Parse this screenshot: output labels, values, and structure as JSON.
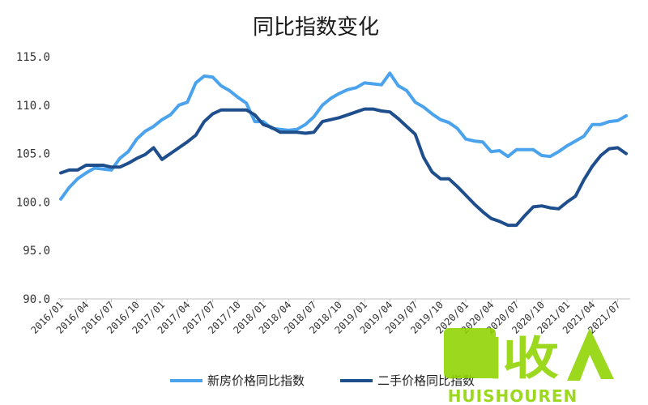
{
  "chart_data": {
    "type": "line",
    "title": "同比指数变化",
    "ylim": [
      90,
      115
    ],
    "yticks": [
      "115.0",
      "110.0",
      "105.0",
      "100.0",
      "95.0",
      "90.0"
    ],
    "x": [
      "2016/01",
      "2016/02",
      "2016/03",
      "2016/04",
      "2016/05",
      "2016/06",
      "2016/07",
      "2016/08",
      "2016/09",
      "2016/10",
      "2016/11",
      "2016/12",
      "2017/01",
      "2017/02",
      "2017/03",
      "2017/04",
      "2017/05",
      "2017/06",
      "2017/07",
      "2017/08",
      "2017/09",
      "2017/10",
      "2017/11",
      "2017/12",
      "2018/01",
      "2018/02",
      "2018/03",
      "2018/04",
      "2018/05",
      "2018/06",
      "2018/07",
      "2018/08",
      "2018/09",
      "2018/10",
      "2018/11",
      "2018/12",
      "2019/01",
      "2019/02",
      "2019/03",
      "2019/04",
      "2019/05",
      "2019/06",
      "2019/07",
      "2019/08",
      "2019/09",
      "2019/10",
      "2019/11",
      "2019/12",
      "2020/01",
      "2020/02",
      "2020/03",
      "2020/04",
      "2020/05",
      "2020/06",
      "2020/07",
      "2020/08",
      "2020/09",
      "2020/10",
      "2020/11",
      "2020/12",
      "2021/01",
      "2021/02",
      "2021/03",
      "2021/04",
      "2021/05",
      "2021/06",
      "2021/07",
      "2021/08"
    ],
    "xtick_labels": [
      "2016/01",
      "2016/04",
      "2016/07",
      "2016/10",
      "2017/01",
      "2017/04",
      "2017/07",
      "2017/10",
      "2018/01",
      "2018/04",
      "2018/07",
      "2018/10",
      "2019/01",
      "2019/04",
      "2019/07",
      "2019/10",
      "2020/01",
      "2020/04",
      "2020/07",
      "2020/10",
      "2021/01",
      "2021/04",
      "2021/07"
    ],
    "grid": false,
    "legend_position": "bottom",
    "series": [
      {
        "name": "新房价格同比指数",
        "color": "#4aa3ec",
        "values": [
          100.3,
          101.5,
          102.4,
          103.0,
          103.5,
          103.4,
          103.3,
          104.5,
          105.2,
          106.5,
          107.3,
          107.8,
          108.5,
          109.0,
          110.0,
          110.3,
          112.3,
          113.0,
          112.9,
          112.0,
          111.5,
          110.8,
          110.2,
          108.3,
          108.3,
          107.6,
          107.5,
          107.4,
          107.5,
          108.0,
          108.8,
          110.0,
          110.7,
          111.2,
          111.6,
          111.8,
          112.3,
          112.2,
          112.1,
          113.3,
          112.0,
          111.5,
          110.3,
          109.8,
          109.1,
          108.5,
          108.2,
          107.6,
          106.5,
          106.3,
          106.2,
          105.2,
          105.3,
          104.7,
          105.4,
          105.4,
          105.4,
          104.8,
          104.7,
          105.2,
          105.8,
          106.3,
          106.8,
          108.0,
          108.0,
          108.3,
          108.4,
          108.9
        ]
      },
      {
        "name": "二手价格同比指数",
        "color": "#1f4e8c",
        "values": [
          103.0,
          103.3,
          103.3,
          103.8,
          103.8,
          103.8,
          103.6,
          103.6,
          104.0,
          104.5,
          104.9,
          105.6,
          104.4,
          105.0,
          105.6,
          106.2,
          106.9,
          108.3,
          109.1,
          109.5,
          109.5,
          109.5,
          109.5,
          109.0,
          108.0,
          107.7,
          107.2,
          107.2,
          107.2,
          107.1,
          107.2,
          108.3,
          108.5,
          108.7,
          109.0,
          109.3,
          109.6,
          109.6,
          109.4,
          109.3,
          108.6,
          107.8,
          107.0,
          104.6,
          103.1,
          102.4,
          102.4,
          101.6,
          100.7,
          99.8,
          99.0,
          98.3,
          98.0,
          97.6,
          97.6,
          98.6,
          99.5,
          99.6,
          99.4,
          99.3,
          100.0,
          100.6,
          102.3,
          103.7,
          104.8,
          105.5,
          105.6,
          105.0
        ]
      }
    ]
  },
  "watermark": {
    "logo_text": "回收",
    "brand_text": "HUISHOUREN"
  }
}
